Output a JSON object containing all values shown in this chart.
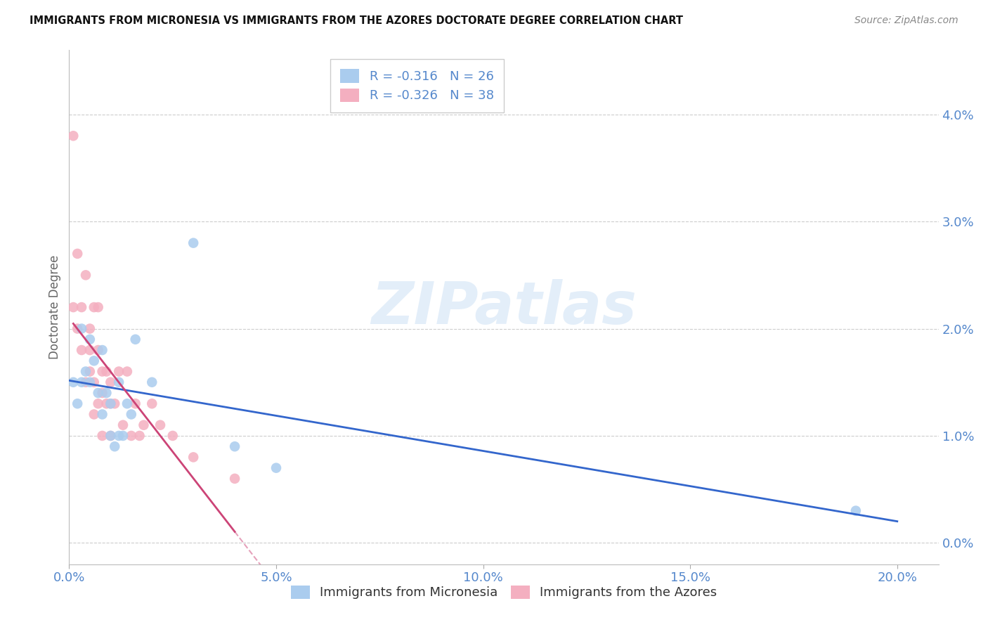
{
  "title": "IMMIGRANTS FROM MICRONESIA VS IMMIGRANTS FROM THE AZORES DOCTORATE DEGREE CORRELATION CHART",
  "source": "Source: ZipAtlas.com",
  "ylabel_label": "Doctorate Degree",
  "xlim": [
    0.0,
    0.21
  ],
  "ylim": [
    -0.002,
    0.046
  ],
  "ytick_vals": [
    0.0,
    0.01,
    0.02,
    0.03,
    0.04
  ],
  "ytick_labels": [
    "0.0%",
    "1.0%",
    "2.0%",
    "3.0%",
    "4.0%"
  ],
  "xtick_vals": [
    0.0,
    0.05,
    0.1,
    0.15,
    0.2
  ],
  "xtick_labels": [
    "0.0%",
    "5.0%",
    "10.0%",
    "15.0%",
    "20.0%"
  ],
  "legend_r1": "R = -0.316   N = 26",
  "legend_r2": "R = -0.326   N = 38",
  "mic_color": "#aaccee",
  "az_color": "#f4afc0",
  "mic_line_color": "#3366cc",
  "az_line_color": "#cc4477",
  "watermark": "ZIPatlas",
  "watermark_color": "#cce0f5",
  "bg_color": "#ffffff",
  "grid_color": "#cccccc",
  "tick_color": "#5588cc",
  "bottom_label_mic": "Immigrants from Micronesia",
  "bottom_label_az": "Immigrants from the Azores",
  "micronesia_x": [
    0.001,
    0.002,
    0.003,
    0.003,
    0.004,
    0.005,
    0.005,
    0.006,
    0.007,
    0.008,
    0.008,
    0.009,
    0.01,
    0.01,
    0.011,
    0.012,
    0.012,
    0.013,
    0.014,
    0.015,
    0.016,
    0.02,
    0.03,
    0.04,
    0.05,
    0.19
  ],
  "micronesia_y": [
    0.015,
    0.013,
    0.02,
    0.015,
    0.016,
    0.019,
    0.015,
    0.017,
    0.014,
    0.018,
    0.012,
    0.014,
    0.013,
    0.01,
    0.009,
    0.01,
    0.015,
    0.01,
    0.013,
    0.012,
    0.019,
    0.015,
    0.028,
    0.009,
    0.007,
    0.003
  ],
  "azores_x": [
    0.001,
    0.001,
    0.002,
    0.002,
    0.003,
    0.003,
    0.004,
    0.004,
    0.005,
    0.005,
    0.005,
    0.006,
    0.006,
    0.006,
    0.007,
    0.007,
    0.007,
    0.008,
    0.008,
    0.008,
    0.009,
    0.009,
    0.01,
    0.01,
    0.01,
    0.011,
    0.012,
    0.013,
    0.014,
    0.015,
    0.016,
    0.017,
    0.018,
    0.02,
    0.022,
    0.025,
    0.03,
    0.04
  ],
  "azores_y": [
    0.038,
    0.022,
    0.027,
    0.02,
    0.018,
    0.022,
    0.025,
    0.015,
    0.018,
    0.02,
    0.016,
    0.012,
    0.015,
    0.022,
    0.022,
    0.018,
    0.013,
    0.01,
    0.014,
    0.016,
    0.013,
    0.016,
    0.015,
    0.013,
    0.01,
    0.013,
    0.016,
    0.011,
    0.016,
    0.01,
    0.013,
    0.01,
    0.011,
    0.013,
    0.011,
    0.01,
    0.008,
    0.006
  ]
}
